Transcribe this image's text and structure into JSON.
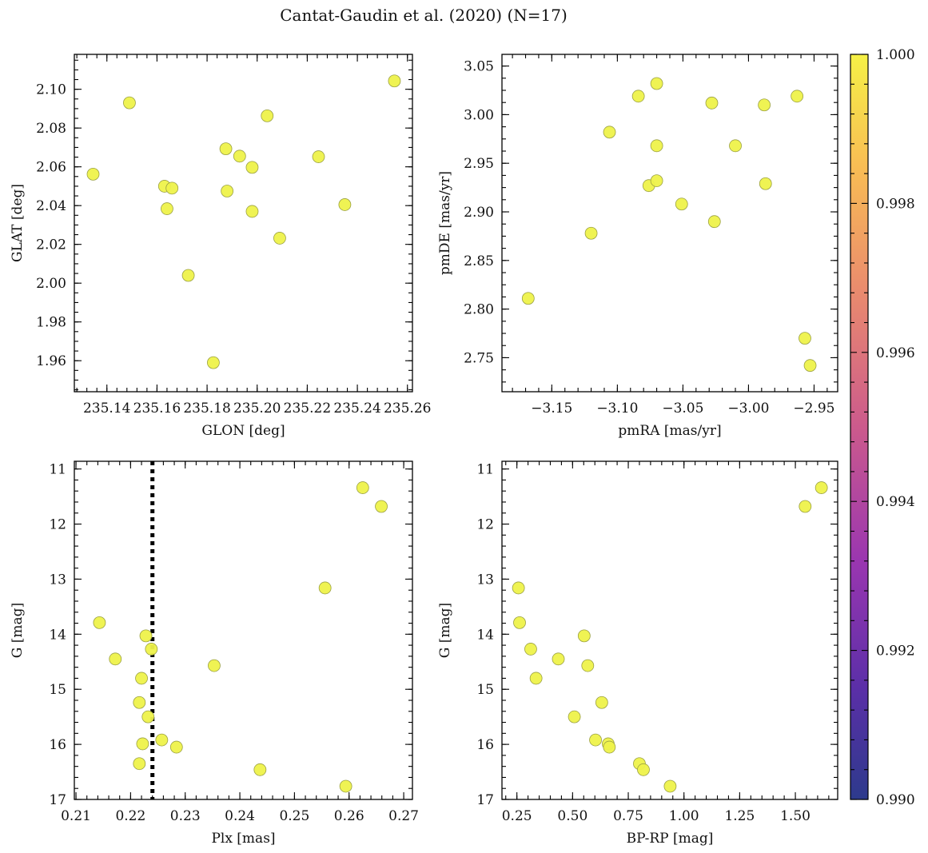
{
  "figure": {
    "title": "Cantat-Gaudin et al. (2020) (N=17)"
  },
  "colorbar": {
    "min": 0.99,
    "max": 1.0,
    "colormap": "plasma",
    "ticks": [
      "0.990",
      "0.992",
      "0.994",
      "0.996",
      "0.998",
      "1.000"
    ]
  },
  "chart_data": [
    {
      "type": "scatter",
      "xlabel": "GLON [deg]",
      "ylabel": "GLAT [deg]",
      "xlim": [
        235.127,
        235.262
      ],
      "ylim": [
        1.944,
        2.118
      ],
      "xticks": [
        "235.14",
        "235.16",
        "235.18",
        "235.20",
        "235.22",
        "235.24",
        "235.26"
      ],
      "yticks": [
        "1.96",
        "1.98",
        "2.00",
        "2.02",
        "2.04",
        "2.06",
        "2.08",
        "2.10"
      ],
      "x": [
        235.1345,
        235.149,
        235.163,
        235.166,
        235.164,
        235.1725,
        235.1825,
        235.1875,
        235.188,
        235.193,
        235.198,
        235.198,
        235.204,
        235.209,
        235.2245,
        235.235,
        235.2548
      ],
      "y": [
        2.0562,
        2.093,
        2.05,
        2.049,
        2.0384,
        2.004,
        1.959,
        2.0693,
        2.0475,
        2.0655,
        2.0597,
        2.037,
        2.0863,
        2.0232,
        2.0652,
        2.0405,
        2.1043
      ]
    },
    {
      "type": "scatter",
      "xlabel": "pmRA [mas/yr]",
      "ylabel": "pmDE [mas/yr]",
      "xlim": [
        -3.188,
        -2.932
      ],
      "ylim": [
        2.715,
        3.062
      ],
      "xticks": [
        "−3.15",
        "−3.10",
        "−3.05",
        "−3.00",
        "−2.95"
      ],
      "yticks": [
        "2.75",
        "2.80",
        "2.85",
        "2.90",
        "2.95",
        "3.00",
        "3.05"
      ],
      "x": [
        -3.168,
        -3.12,
        -3.106,
        -3.084,
        -3.076,
        -3.07,
        -3.07,
        -3.07,
        -3.051,
        -3.028,
        -3.026,
        -3.01,
        -2.988,
        -2.987,
        -2.963,
        -2.957,
        -2.953
      ],
      "y": [
        2.811,
        2.878,
        2.982,
        3.019,
        2.927,
        3.032,
        2.968,
        2.932,
        2.908,
        3.012,
        2.89,
        2.968,
        3.01,
        2.929,
        3.019,
        2.77,
        2.742
      ]
    },
    {
      "type": "scatter",
      "xlabel": "Plx [mas]",
      "ylabel": "G [mag]",
      "xlim": [
        0.2097,
        0.2716
      ],
      "ylim": [
        17.0,
        10.86
      ],
      "y_inverted": true,
      "xticks": [
        "0.21",
        "0.22",
        "0.23",
        "0.24",
        "0.25",
        "0.26",
        "0.27"
      ],
      "yticks": [
        "11",
        "12",
        "13",
        "14",
        "15",
        "16",
        "17"
      ],
      "vline": {
        "x": 0.224,
        "style": "dotted"
      },
      "x": [
        0.2143,
        0.2172,
        0.222,
        0.2228,
        0.2238,
        0.2216,
        0.2232,
        0.2257,
        0.2222,
        0.2284,
        0.2216,
        0.2353,
        0.2437,
        0.2556,
        0.2594,
        0.2625,
        0.2659
      ],
      "y": [
        13.79,
        14.45,
        14.8,
        14.03,
        14.27,
        15.24,
        15.5,
        15.92,
        15.99,
        16.05,
        16.35,
        14.57,
        16.46,
        13.16,
        16.76,
        11.34,
        11.68
      ]
    },
    {
      "type": "scatter",
      "xlabel": "BP-RP [mag]",
      "ylabel": "G [mag]",
      "xlim": [
        0.183,
        1.69
      ],
      "ylim": [
        17.0,
        10.86
      ],
      "y_inverted": true,
      "xticks": [
        "0.25",
        "0.50",
        "0.75",
        "1.00",
        "1.25",
        "1.50"
      ],
      "yticks": [
        "11",
        "12",
        "13",
        "14",
        "15",
        "16",
        "17"
      ],
      "x": [
        0.257,
        0.262,
        0.312,
        0.336,
        0.436,
        0.508,
        0.552,
        0.568,
        0.603,
        0.631,
        0.66,
        0.665,
        0.8,
        0.818,
        0.938,
        1.544,
        1.617
      ],
      "y": [
        13.16,
        13.79,
        14.27,
        14.8,
        14.45,
        15.5,
        14.03,
        14.57,
        15.92,
        15.24,
        15.99,
        16.05,
        16.35,
        16.46,
        16.76,
        11.68,
        11.34
      ]
    }
  ]
}
